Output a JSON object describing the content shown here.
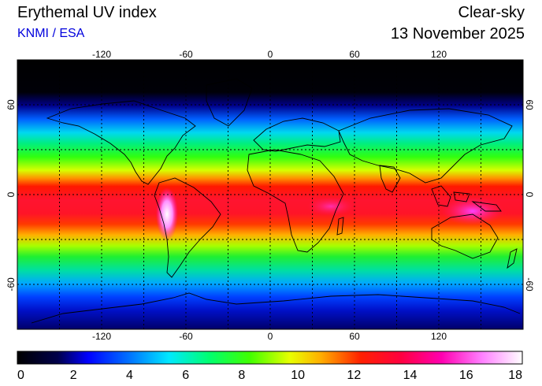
{
  "header": {
    "title": "Erythemal UV index",
    "credit": "KNMI / ESA",
    "sky": "Clear-sky",
    "date": "13 November 2025"
  },
  "map": {
    "lon_ticks": [
      "-120",
      "-60",
      "0",
      "60",
      "120"
    ],
    "lat_ticks": [
      "60",
      "0",
      "-60"
    ]
  },
  "colorbar": {
    "labels": [
      "0",
      "2",
      "4",
      "6",
      "8",
      "10",
      "12",
      "14",
      "16",
      "18"
    ],
    "min": 0,
    "max": 18
  }
}
